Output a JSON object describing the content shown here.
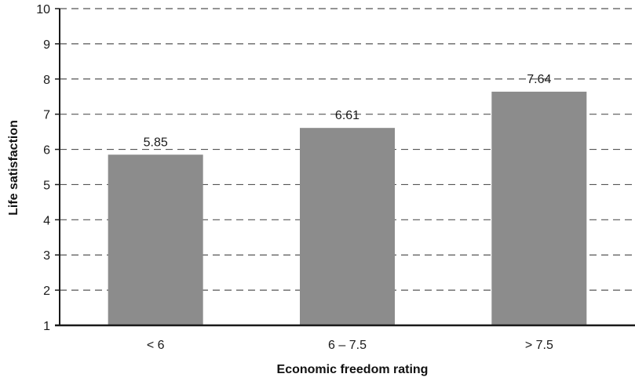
{
  "chart_data": {
    "type": "bar",
    "categories": [
      "< 6",
      "6 – 7.5",
      "> 7.5"
    ],
    "values": [
      5.85,
      6.61,
      7.64
    ],
    "data_labels": [
      "5.85",
      "6.61",
      "7.64"
    ],
    "xlabel": "Economic freedom rating",
    "ylabel": "Life satisfaction",
    "ylim": [
      1,
      10
    ],
    "yticks": [
      "1",
      "2",
      "3",
      "4",
      "5",
      "6",
      "7",
      "8",
      "9",
      "10"
    ],
    "grid": true,
    "legend": "none",
    "colors": {
      "bar": "#8c8c8c",
      "axis": "#1a1a1a",
      "grid": "#555555",
      "text": "#1a1a1a"
    }
  }
}
